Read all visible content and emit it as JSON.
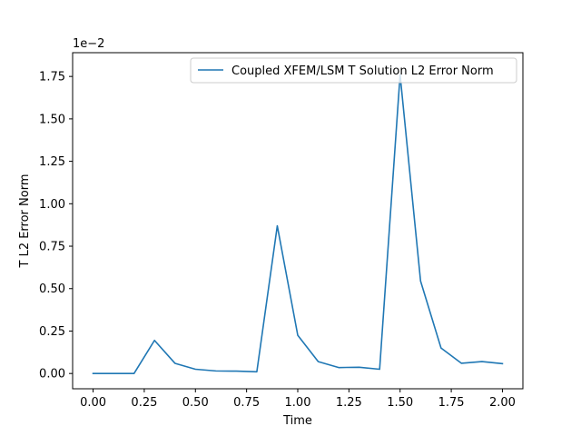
{
  "chart_data": {
    "type": "line",
    "title": "",
    "xlabel": "Time",
    "ylabel": "T L2 Error Norm",
    "y_offset_label": "1e−2",
    "xlim": [
      -0.1,
      2.1
    ],
    "ylim": [
      -0.09,
      1.89
    ],
    "x_ticks": [
      0.0,
      0.25,
      0.5,
      0.75,
      1.0,
      1.25,
      1.5,
      1.75,
      2.0
    ],
    "x_tick_labels": [
      "0.00",
      "0.25",
      "0.50",
      "0.75",
      "1.00",
      "1.25",
      "1.50",
      "1.75",
      "2.00"
    ],
    "y_ticks": [
      0.0,
      0.25,
      0.5,
      0.75,
      1.0,
      1.25,
      1.5,
      1.75
    ],
    "y_tick_labels": [
      "0.00",
      "0.25",
      "0.50",
      "0.75",
      "1.00",
      "1.25",
      "1.50",
      "1.75"
    ],
    "grid": false,
    "legend_position": "top-right",
    "series": [
      {
        "name": "Coupled XFEM/LSM T Solution L2 Error Norm",
        "color": "#1f77b4",
        "x": [
          0.0,
          0.1,
          0.2,
          0.3,
          0.4,
          0.5,
          0.6,
          0.7,
          0.8,
          0.9,
          1.0,
          1.1,
          1.2,
          1.3,
          1.4,
          1.5,
          1.6,
          1.7,
          1.8,
          1.9,
          2.0
        ],
        "y": [
          0.0,
          0.0,
          0.0,
          0.195,
          0.06,
          0.025,
          0.015,
          0.014,
          0.01,
          0.87,
          0.225,
          0.07,
          0.035,
          0.037,
          0.025,
          1.76,
          0.545,
          0.15,
          0.06,
          0.07,
          0.058
        ]
      }
    ]
  }
}
